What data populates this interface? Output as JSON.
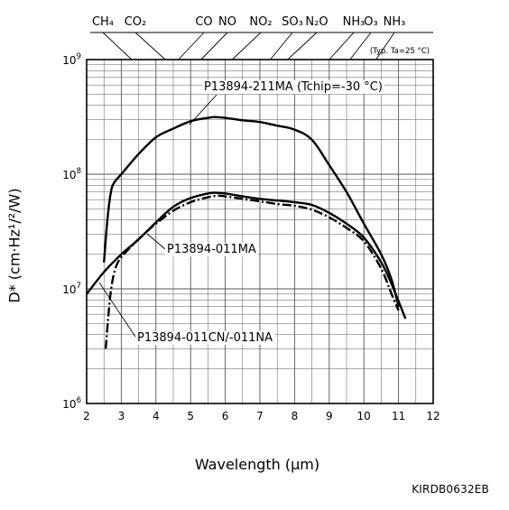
{
  "chart_data": {
    "type": "line",
    "xlabel": "Wavelength (μm)",
    "ylabel": "D* (cm·Hz¹/²/W)",
    "xlim": [
      2,
      12
    ],
    "ylim": [
      1000000,
      1000000000
    ],
    "y_scale": "log",
    "grid": true,
    "x_ticks": [
      "2",
      "3",
      "4",
      "5",
      "6",
      "7",
      "8",
      "9",
      "10",
      "11",
      "12"
    ],
    "y_ticks": [
      {
        "value": 1000000,
        "base": "10",
        "exp": "6"
      },
      {
        "value": 10000000,
        "base": "10",
        "exp": "7"
      },
      {
        "value": 100000000,
        "base": "10",
        "exp": "8"
      },
      {
        "value": 1000000000,
        "base": "10",
        "exp": "9"
      }
    ],
    "note": "(Typ. Ta=25 °C)",
    "absorption_lines": [
      {
        "label": "CH₄",
        "x": 3.3
      },
      {
        "label": "CO₂",
        "x": 4.27
      },
      {
        "label": "CO",
        "x": 4.65
      },
      {
        "label": "NO",
        "x": 5.3
      },
      {
        "label": "NO₂",
        "x": 6.2
      },
      {
        "label": "SO₃",
        "x": 7.3
      },
      {
        "label": "N₂O",
        "x": 7.8
      },
      {
        "label": "NH₃",
        "x": 9.0
      },
      {
        "label": "O₃",
        "x": 9.6
      },
      {
        "label": "NH₃",
        "x": 10.35
      }
    ],
    "series": [
      {
        "name": "P13894-211MA (Tchip=-30 °C)",
        "style": "solid",
        "x": [
          2.5,
          2.6,
          2.7,
          2.8,
          3.0,
          3.5,
          4.0,
          4.5,
          5.0,
          5.5,
          5.7,
          6.0,
          6.5,
          7.0,
          7.5,
          8.0,
          8.5,
          9.0,
          9.5,
          10.0,
          10.5,
          10.8,
          11.0
        ],
        "y": [
          17000000,
          40000000,
          70000000,
          85000000,
          100000000,
          150000000,
          210000000,
          250000000,
          290000000,
          310000000,
          315000000,
          310000000,
          295000000,
          285000000,
          265000000,
          245000000,
          200000000,
          120000000,
          70000000,
          37000000,
          20000000,
          12000000,
          7000000
        ]
      },
      {
        "name": "P13894-011MA",
        "style": "solid",
        "x": [
          2.0,
          2.5,
          3.0,
          3.5,
          4.0,
          4.5,
          5.0,
          5.5,
          5.7,
          6.0,
          6.5,
          7.0,
          7.5,
          8.0,
          8.5,
          9.0,
          9.5,
          10.0,
          10.5,
          10.8,
          11.2
        ],
        "y": [
          9000000,
          14000000,
          20000000,
          27000000,
          38000000,
          52000000,
          62000000,
          68000000,
          69000000,
          68000000,
          64000000,
          61000000,
          59000000,
          57000000,
          54000000,
          46000000,
          37000000,
          28000000,
          17000000,
          11000000,
          5500000
        ]
      },
      {
        "name": "P13894-011CN/-011NA",
        "style": "dash-dot",
        "x": [
          2.55,
          2.65,
          2.75,
          2.9,
          3.2,
          3.6,
          4.0,
          4.5,
          5.0,
          5.5,
          5.8,
          6.0,
          6.5,
          7.0,
          7.5,
          8.0,
          8.5,
          9.0,
          9.5,
          10.0,
          10.5,
          10.8,
          11.0
        ],
        "y": [
          3000000,
          7000000,
          12000000,
          17000000,
          22000000,
          29000000,
          37000000,
          48000000,
          57000000,
          63000000,
          65000000,
          64000000,
          61000000,
          58000000,
          55000000,
          53000000,
          49000000,
          42000000,
          34000000,
          26000000,
          15000000,
          9000000,
          6500000
        ]
      }
    ],
    "annotations": [
      "P13894-211MA (Tchip=-30 °C)",
      "P13894-011MA",
      "P13894-011CN/-011NA"
    ]
  },
  "document_code": "KIRDB0632EB"
}
